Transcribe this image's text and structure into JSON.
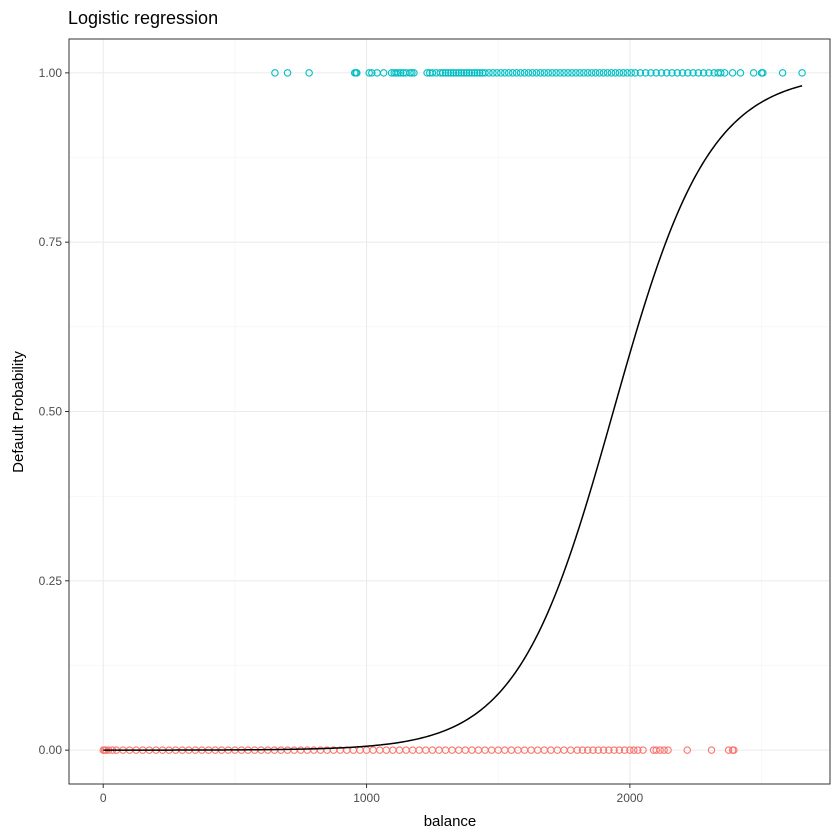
{
  "chart_data": {
    "type": "scatter",
    "title": "Logistic regression",
    "xlabel": "balance",
    "ylabel": "Default Probability",
    "xlim": [
      -130,
      2760
    ],
    "ylim": [
      -0.05,
      1.05
    ],
    "x_ticks": [
      0,
      1000,
      2000
    ],
    "x_tick_labels": [
      "0",
      "1000",
      "2000"
    ],
    "y_ticks": [
      0,
      0.25,
      0.5,
      0.75,
      1
    ],
    "y_tick_labels": [
      "0.00",
      "0.25",
      "0.50",
      "0.75",
      "1.00"
    ],
    "grid": true,
    "legend": "none",
    "colors": {
      "default_yes": "#00BFC4",
      "default_no": "#F8766D",
      "fit": "#000000"
    },
    "series": [
      {
        "y": 1,
        "x": [
          652,
          700,
          782,
          955,
          960,
          963,
          1010,
          1020,
          1040,
          1065,
          1095,
          1105,
          1112,
          1120,
          1130,
          1140,
          1150,
          1165,
          1172,
          1180,
          1230,
          1240,
          1250,
          1265,
          1280,
          1290,
          1300,
          1310,
          1320,
          1330,
          1340,
          1350,
          1360,
          1370,
          1380,
          1390,
          1400,
          1410,
          1420,
          1430,
          1440,
          1450,
          1465,
          1480,
          1495,
          1510,
          1525,
          1540,
          1555,
          1570,
          1585,
          1600,
          1615,
          1630,
          1645,
          1660,
          1675,
          1690,
          1705,
          1720,
          1735,
          1750,
          1765,
          1780,
          1795,
          1810,
          1825,
          1840,
          1855,
          1870,
          1885,
          1900,
          1915,
          1930,
          1945,
          1960,
          1975,
          1990,
          2005,
          2020,
          2040,
          2060,
          2080,
          2100,
          2120,
          2140,
          2160,
          2180,
          2200,
          2220,
          2240,
          2260,
          2280,
          2300,
          2320,
          2335,
          2345,
          2360,
          2390,
          2420,
          2470,
          2500,
          2505,
          2580,
          2654
        ]
      },
      {
        "y": 0,
        "x": [
          0,
          5,
          10,
          20,
          35,
          50,
          75,
          100,
          125,
          150,
          175,
          200,
          225,
          250,
          275,
          300,
          325,
          350,
          375,
          400,
          425,
          450,
          475,
          500,
          525,
          550,
          575,
          600,
          625,
          650,
          675,
          700,
          725,
          750,
          775,
          800,
          825,
          850,
          875,
          900,
          925,
          950,
          975,
          1000,
          1025,
          1050,
          1075,
          1100,
          1125,
          1150,
          1175,
          1200,
          1225,
          1250,
          1275,
          1300,
          1325,
          1350,
          1375,
          1400,
          1425,
          1450,
          1475,
          1500,
          1525,
          1550,
          1575,
          1600,
          1625,
          1650,
          1675,
          1700,
          1725,
          1750,
          1775,
          1800,
          1820,
          1840,
          1860,
          1880,
          1900,
          1920,
          1940,
          1960,
          1980,
          2000,
          2015,
          2030,
          2050,
          2090,
          2100,
          2115,
          2130,
          2145,
          2218,
          2310,
          2375,
          2390,
          2395
        ]
      }
    ],
    "fit_curve": {
      "model": "logistic",
      "intercept": -10.6513,
      "coef_balance": 0.0054989,
      "x_range": [
        0,
        2654
      ]
    }
  }
}
